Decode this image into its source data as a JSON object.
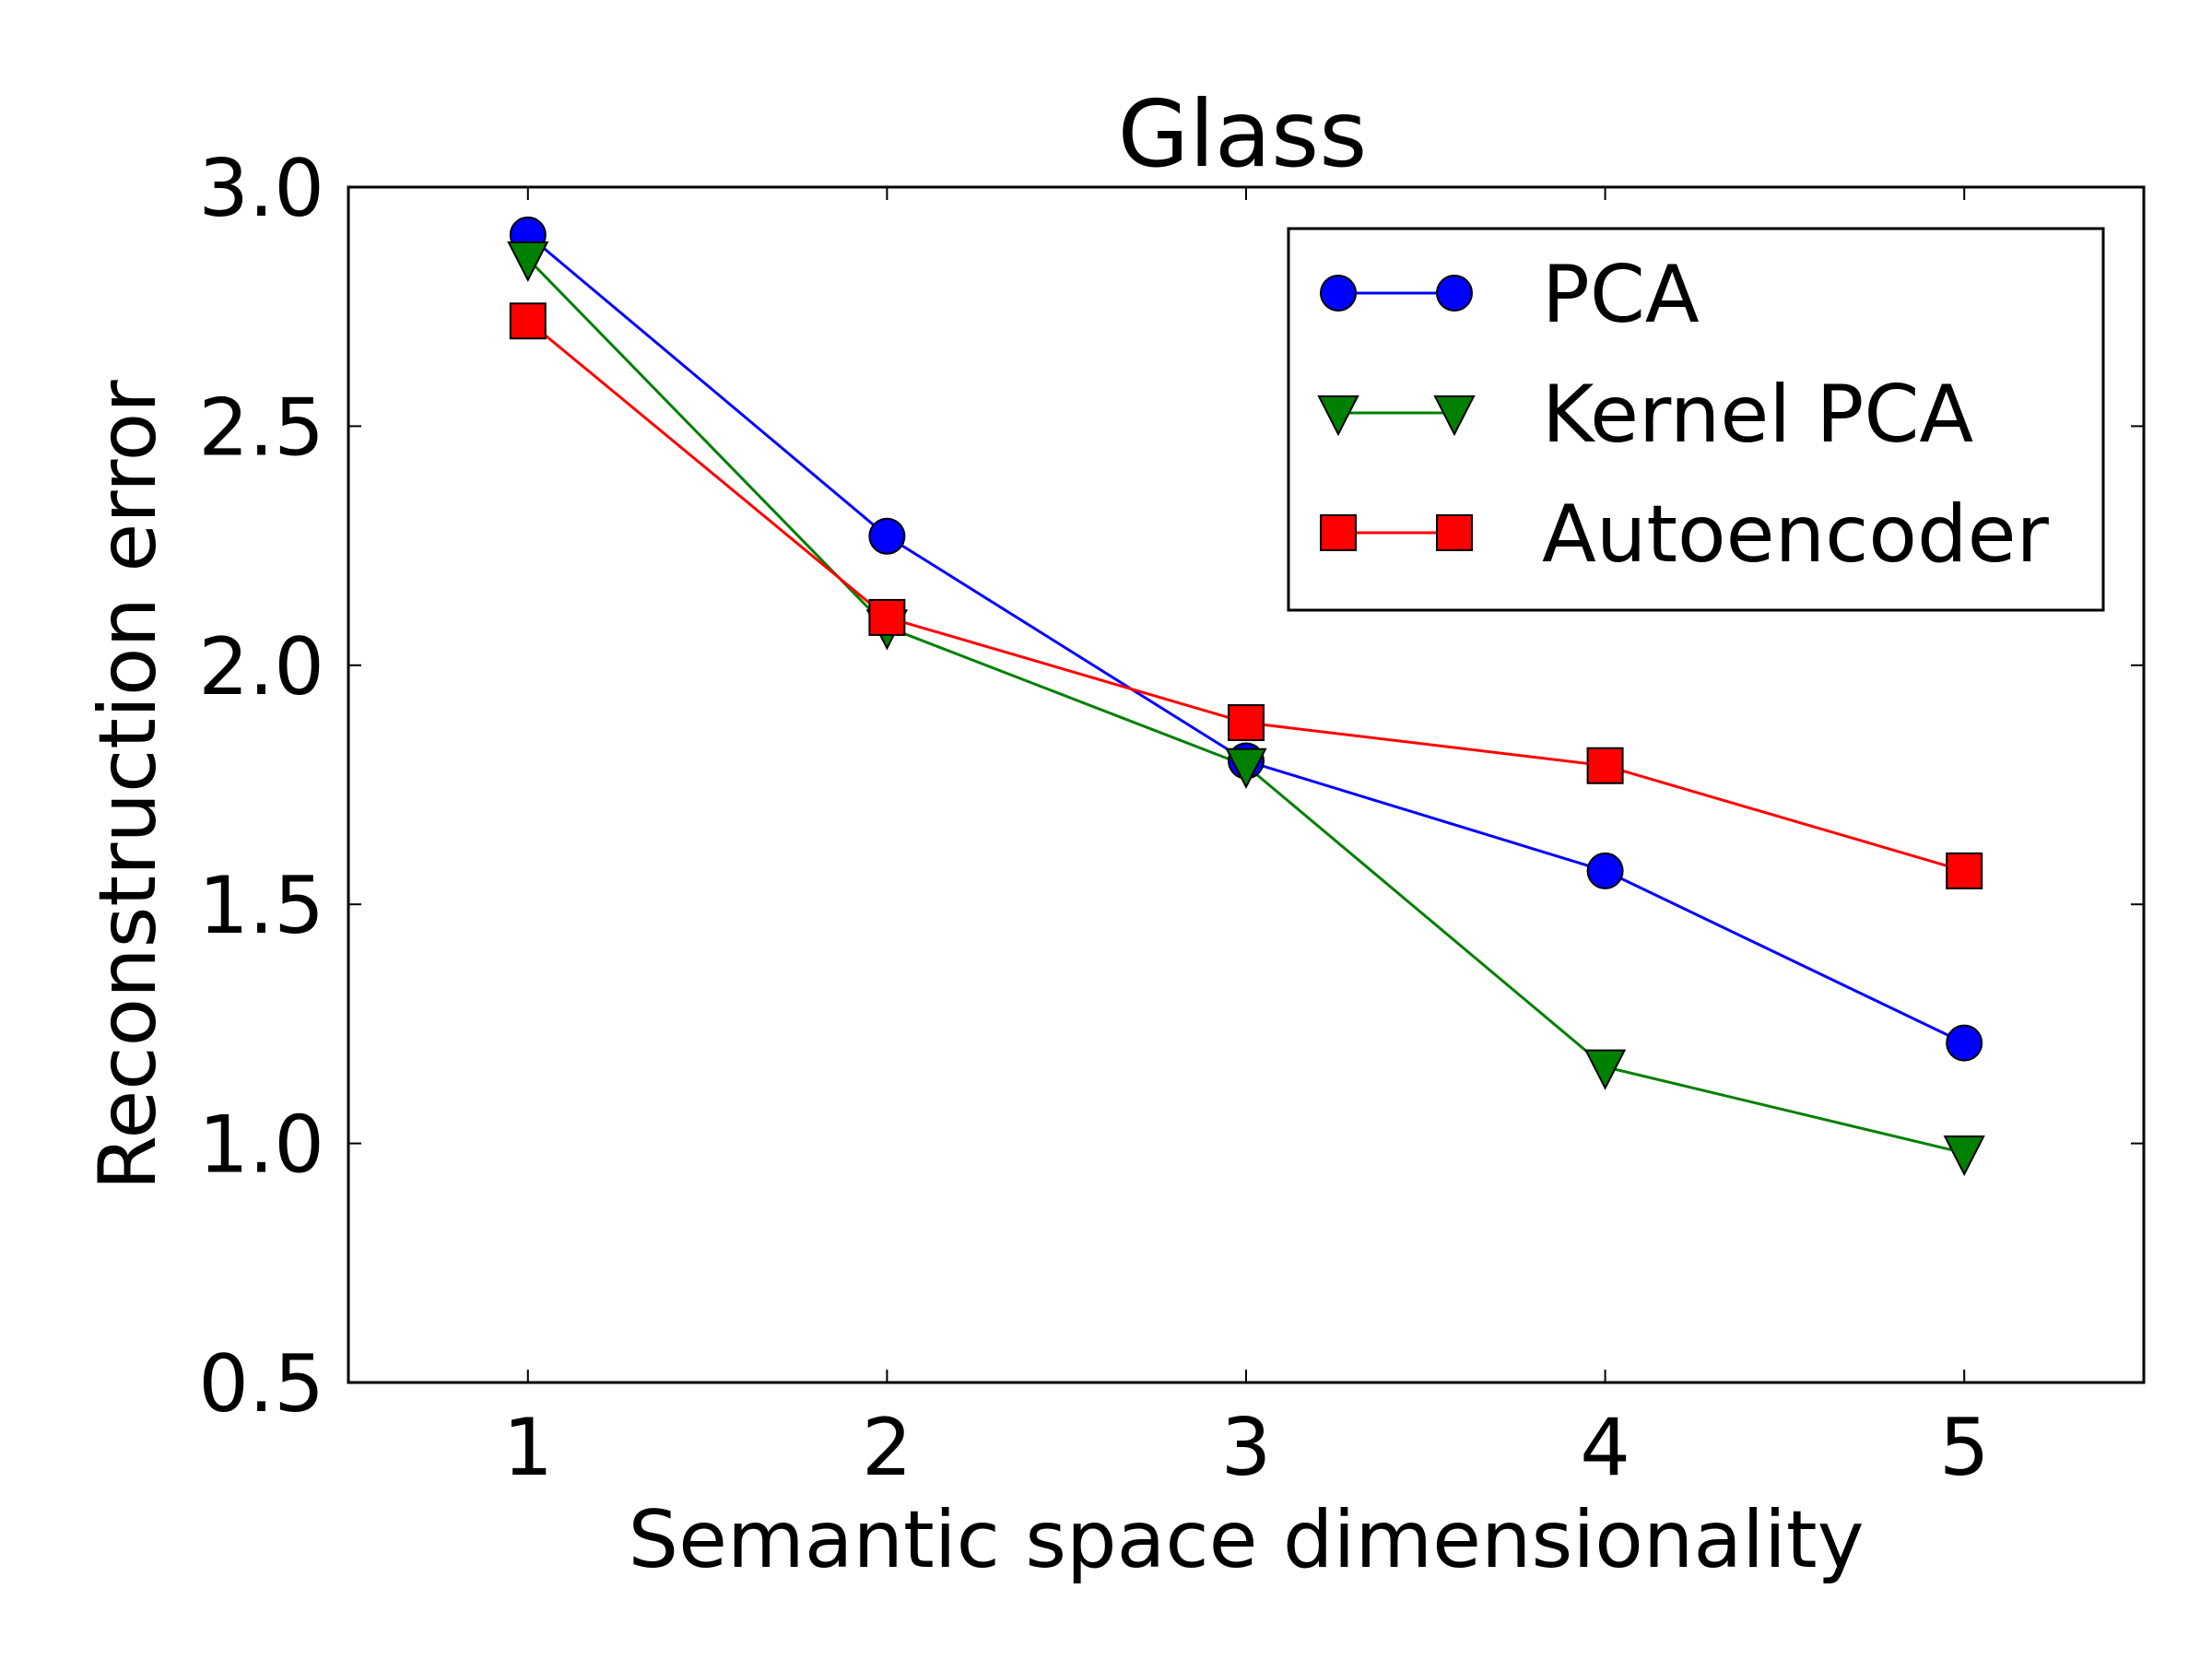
{
  "chart_data": {
    "type": "line",
    "title": "Glass",
    "xlabel": "Semantic space dimensionality",
    "ylabel": "Reconstruction error",
    "x": [
      1,
      2,
      3,
      4,
      5
    ],
    "xlim": [
      0.5,
      5.5
    ],
    "ylim": [
      0.5,
      3.0
    ],
    "xticks": [
      "1",
      "2",
      "3",
      "4",
      "5"
    ],
    "yticks": [
      "0.5",
      "1.0",
      "1.5",
      "2.0",
      "2.5",
      "3.0"
    ],
    "grid": false,
    "legend_position": "top-right",
    "series": [
      {
        "name": "PCA",
        "values": [
          2.9,
          2.27,
          1.8,
          1.57,
          1.21
        ],
        "color": "#0000ff",
        "marker": "circle"
      },
      {
        "name": "Kernel PCA",
        "values": [
          2.85,
          2.08,
          1.79,
          1.16,
          0.98
        ],
        "color": "#008000",
        "marker": "triangle-down"
      },
      {
        "name": "Autoencoder",
        "values": [
          2.72,
          2.1,
          1.88,
          1.79,
          1.57
        ],
        "color": "#ff0000",
        "marker": "square"
      }
    ]
  }
}
